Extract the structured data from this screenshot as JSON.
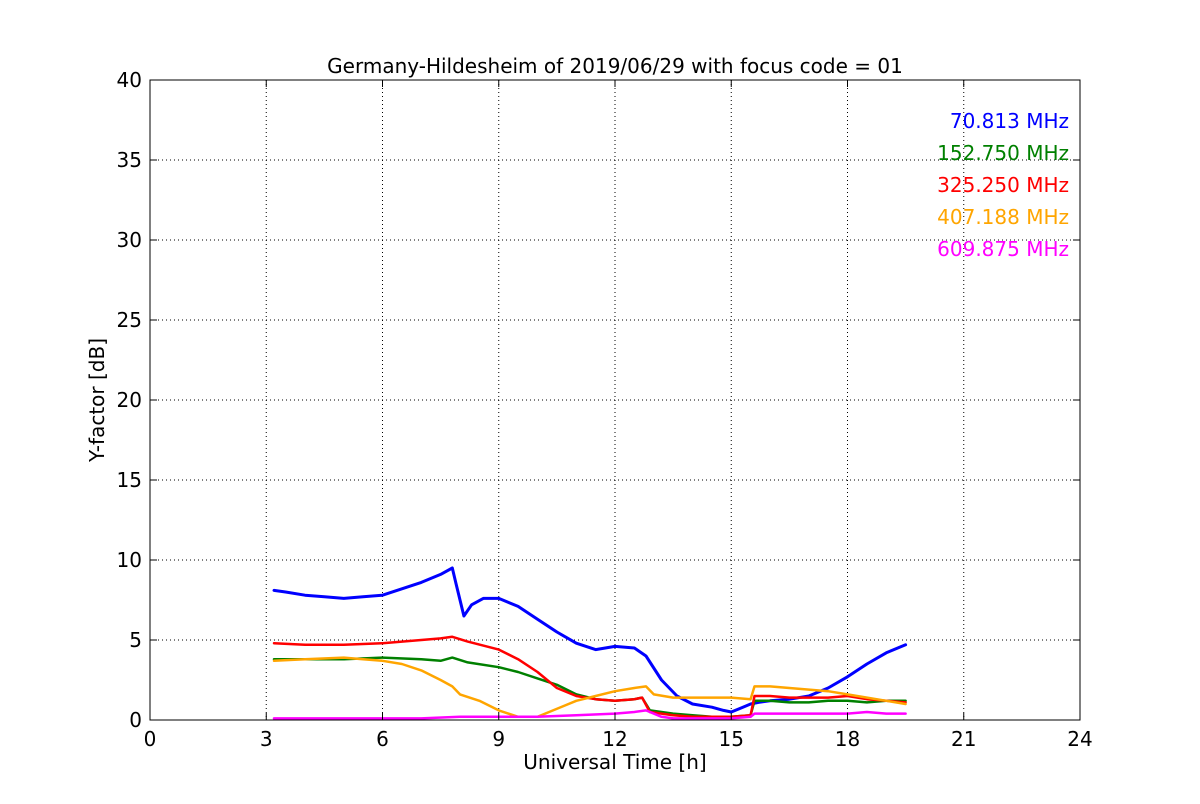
{
  "chart_data": {
    "type": "line",
    "title": "Germany-Hildesheim of 2019/06/29 with focus code = 01",
    "xlabel": "Universal Time [h]",
    "ylabel": "Y-factor [dB]",
    "xlim": [
      0,
      24
    ],
    "ylim": [
      0,
      40
    ],
    "xticks": [
      0,
      3,
      6,
      9,
      12,
      15,
      18,
      21,
      24
    ],
    "yticks": [
      0,
      5,
      10,
      15,
      20,
      25,
      30,
      35,
      40
    ],
    "grid": true,
    "legend_position": "top-right",
    "series": [
      {
        "name": "70.813 MHz",
        "color": "#0000ff",
        "x": [
          3.2,
          3.5,
          4.0,
          4.5,
          5.0,
          5.5,
          6.0,
          6.5,
          7.0,
          7.5,
          7.8,
          7.9,
          8.1,
          8.3,
          8.6,
          9.0,
          9.5,
          10.0,
          10.5,
          11.0,
          11.5,
          12.0,
          12.5,
          12.8,
          13.2,
          13.6,
          14.0,
          14.5,
          14.8,
          15.0,
          15.3,
          15.5,
          15.7,
          16.0,
          16.5,
          17.0,
          17.5,
          18.0,
          18.5,
          19.0,
          19.5
        ],
        "y": [
          8.1,
          8.0,
          7.8,
          7.7,
          7.6,
          7.7,
          7.8,
          8.2,
          8.6,
          9.1,
          9.5,
          8.5,
          6.5,
          7.2,
          7.6,
          7.6,
          7.1,
          6.3,
          5.5,
          4.8,
          4.4,
          4.6,
          4.5,
          4.0,
          2.5,
          1.5,
          1.0,
          0.8,
          0.6,
          0.5,
          0.8,
          1.0,
          1.1,
          1.2,
          1.3,
          1.5,
          2.0,
          2.7,
          3.5,
          4.2,
          4.7
        ]
      },
      {
        "name": "152.750 MHz",
        "color": "#008000",
        "x": [
          3.2,
          4.0,
          5.0,
          6.0,
          7.0,
          7.5,
          7.8,
          8.2,
          9.0,
          9.5,
          10.0,
          10.5,
          11.0,
          11.5,
          12.0,
          12.5,
          12.7,
          12.9,
          13.5,
          14.0,
          14.5,
          15.0,
          15.5,
          15.6,
          16.0,
          16.5,
          17.0,
          17.5,
          18.0,
          18.5,
          19.0,
          19.5
        ],
        "y": [
          3.8,
          3.8,
          3.8,
          3.9,
          3.8,
          3.7,
          3.9,
          3.6,
          3.3,
          3.0,
          2.6,
          2.2,
          1.6,
          1.3,
          1.2,
          1.3,
          1.4,
          0.6,
          0.4,
          0.3,
          0.2,
          0.2,
          0.3,
          1.2,
          1.2,
          1.1,
          1.1,
          1.2,
          1.2,
          1.1,
          1.2,
          1.2
        ]
      },
      {
        "name": "325.250 MHz",
        "color": "#ff0000",
        "x": [
          3.2,
          4.0,
          5.0,
          6.0,
          7.0,
          7.5,
          7.8,
          8.2,
          9.0,
          9.5,
          10.0,
          10.5,
          11.0,
          11.5,
          12.0,
          12.5,
          12.7,
          12.9,
          13.5,
          14.0,
          14.5,
          15.0,
          15.5,
          15.6,
          16.0,
          16.5,
          17.0,
          17.5,
          18.0,
          18.5,
          19.0,
          19.5
        ],
        "y": [
          4.8,
          4.7,
          4.7,
          4.8,
          5.0,
          5.1,
          5.2,
          4.9,
          4.4,
          3.8,
          3.0,
          2.0,
          1.5,
          1.3,
          1.2,
          1.3,
          1.4,
          0.5,
          0.3,
          0.2,
          0.2,
          0.2,
          0.3,
          1.5,
          1.5,
          1.4,
          1.4,
          1.4,
          1.5,
          1.3,
          1.2,
          1.1
        ]
      },
      {
        "name": "407.188 MHz",
        "color": "#ffa500",
        "x": [
          3.2,
          4.0,
          5.0,
          5.5,
          6.0,
          6.5,
          7.0,
          7.5,
          7.8,
          8.0,
          8.5,
          9.0,
          9.5,
          10.0,
          10.3,
          10.7,
          11.0,
          11.5,
          12.0,
          12.5,
          12.8,
          13.0,
          13.5,
          14.0,
          14.5,
          15.0,
          15.5,
          15.6,
          16.0,
          16.5,
          17.0,
          17.5,
          18.0,
          18.5,
          19.0,
          19.5
        ],
        "y": [
          3.7,
          3.8,
          3.9,
          3.8,
          3.7,
          3.5,
          3.1,
          2.5,
          2.1,
          1.6,
          1.2,
          0.6,
          0.2,
          0.2,
          0.5,
          0.9,
          1.2,
          1.5,
          1.8,
          2.0,
          2.1,
          1.6,
          1.4,
          1.4,
          1.4,
          1.4,
          1.3,
          2.1,
          2.1,
          2.0,
          1.9,
          1.8,
          1.6,
          1.4,
          1.2,
          1.0
        ]
      },
      {
        "name": "609.875 MHz",
        "color": "#ff00ff",
        "x": [
          3.2,
          4.0,
          5.0,
          6.0,
          7.0,
          8.0,
          9.0,
          10.0,
          11.0,
          12.0,
          12.5,
          12.8,
          13.2,
          13.5,
          14.0,
          14.5,
          15.0,
          15.5,
          15.6,
          16.0,
          17.0,
          18.0,
          18.5,
          19.0,
          19.5
        ],
        "y": [
          0.1,
          0.1,
          0.1,
          0.1,
          0.1,
          0.2,
          0.2,
          0.2,
          0.3,
          0.4,
          0.5,
          0.6,
          0.2,
          0.1,
          0.1,
          0.1,
          0.1,
          0.2,
          0.4,
          0.4,
          0.4,
          0.4,
          0.5,
          0.4,
          0.4
        ]
      }
    ]
  }
}
